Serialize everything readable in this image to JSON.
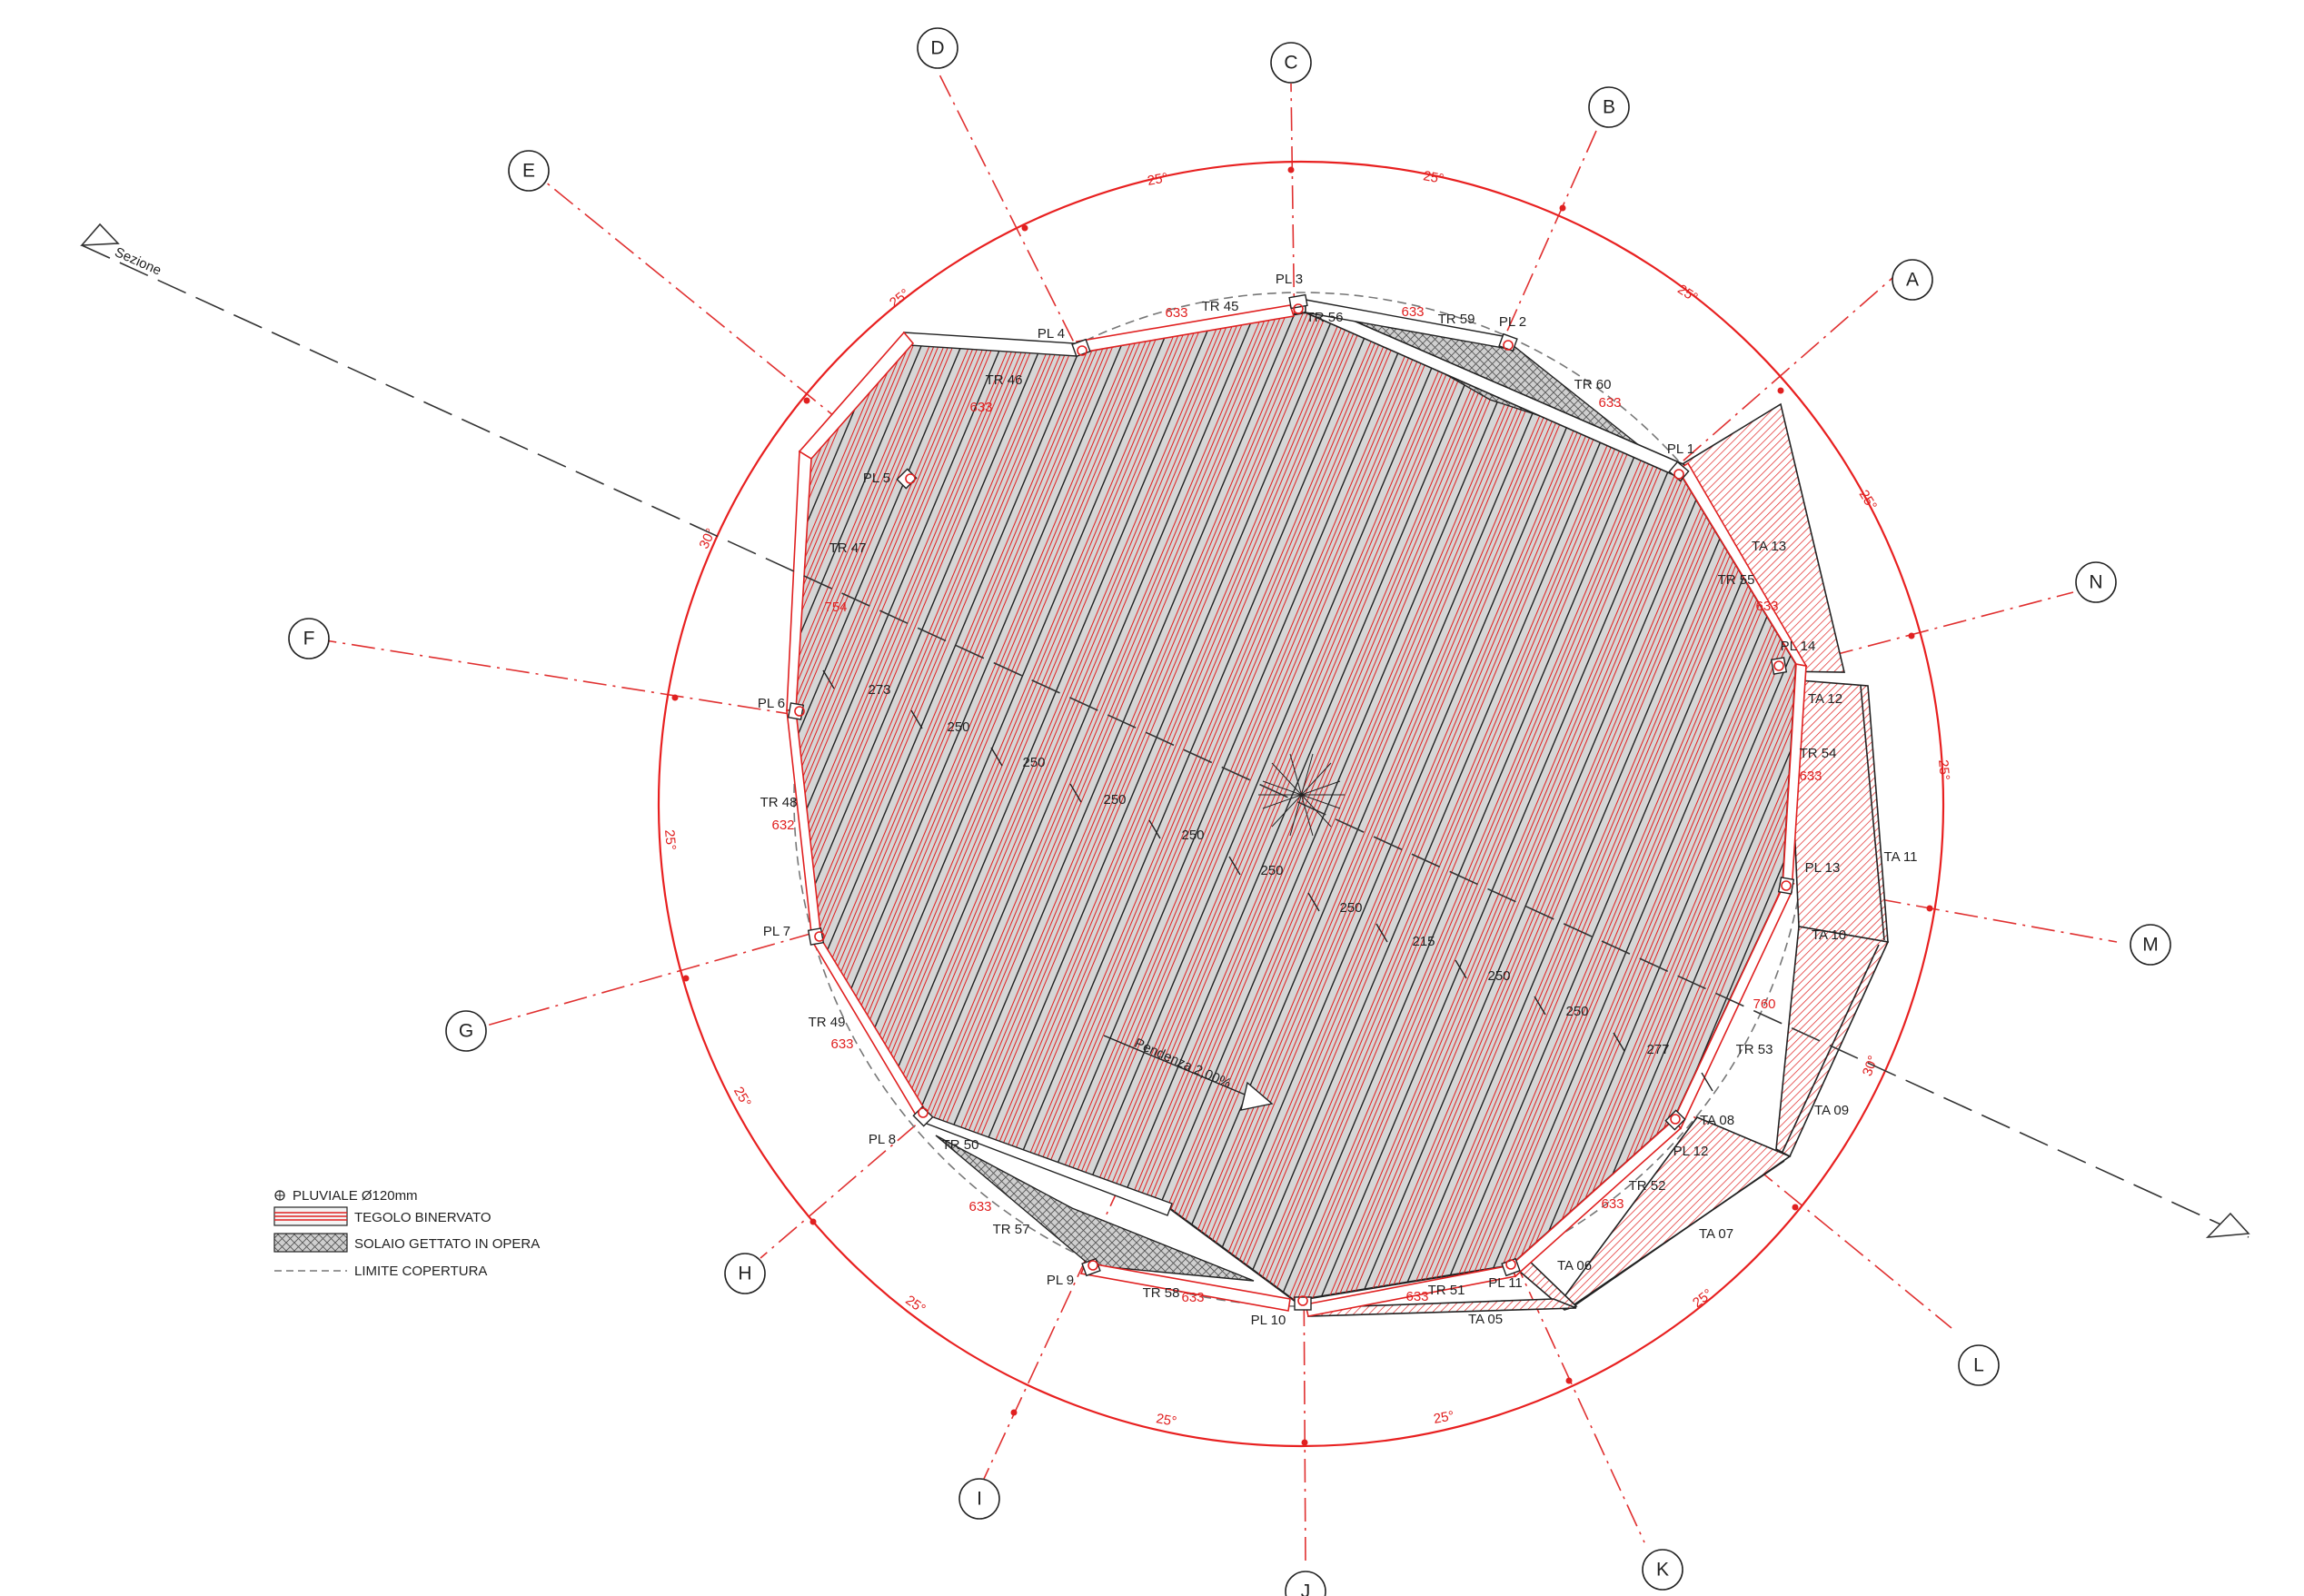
{
  "grid_axes": [
    "A",
    "B",
    "C",
    "D",
    "E",
    "F",
    "G",
    "H",
    "I",
    "J",
    "K",
    "L",
    "M",
    "N"
  ],
  "angles": {
    "deg25": "25°",
    "deg30": "30°"
  },
  "pillars": [
    "PL 1",
    "PL 2",
    "PL 3",
    "PL 4",
    "PL 5",
    "PL 6",
    "PL 7",
    "PL 8",
    "PL 9",
    "PL 10",
    "PL 11",
    "PL 12",
    "PL 13",
    "PL 14"
  ],
  "beams": {
    "TR 45": "TR 45",
    "TR 46": "TR 46",
    "TR 47": "TR 47",
    "TR 48": "TR 48",
    "TR 49": "TR 49",
    "TR 50": "TR 50",
    "TR 51": "TR 51",
    "TR 52": "TR 52",
    "TR 53": "TR 53",
    "TR 54": "TR 54",
    "TR 55": "TR 55",
    "TR 56": "TR 56",
    "TR 57": "TR 57",
    "TR 58": "TR 58",
    "TR 59": "TR 59",
    "TR 60": "TR 60"
  },
  "ta_beams": [
    "TA 05",
    "TA 06",
    "TA 07",
    "TA 08",
    "TA 09",
    "TA 10",
    "TA 11",
    "TA 12",
    "TA 13"
  ],
  "beam_lengths": {
    "l633": "633",
    "l754": "754",
    "l632": "632",
    "l760": "760"
  },
  "section_dims": [
    "273",
    "250",
    "250",
    "250",
    "250",
    "250",
    "250",
    "215",
    "250",
    "250",
    "277"
  ],
  "section_label": "Sezione",
  "slope_label": "Pendenza 2,00%",
  "legend": [
    {
      "key": "pluviale",
      "label": "PLUVIALE Ø120mm"
    },
    {
      "key": "tegolo",
      "label": "TEGOLO BINERVATO"
    },
    {
      "key": "solaio",
      "label": "SOLAIO GETTATO IN OPERA"
    },
    {
      "key": "limite",
      "label": "LIMITE COPERTURA"
    }
  ],
  "colors": {
    "red": "#e02020",
    "slab": "#d6d6d6",
    "ink": "#222222"
  }
}
